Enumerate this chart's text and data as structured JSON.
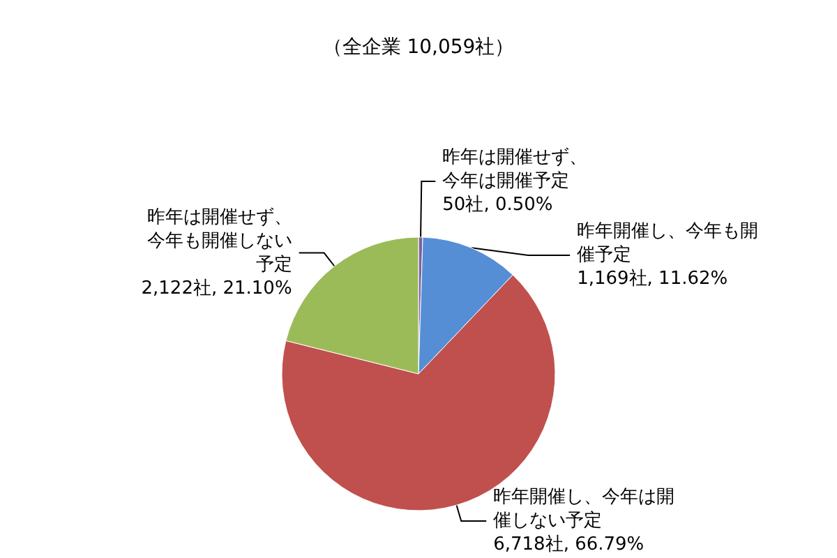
{
  "chart_data": {
    "type": "pie",
    "title": "（全企業 10,059社）",
    "categories": [
      "昨年は開催せず、今年は開催予定",
      "昨年開催し、今年も開催予定",
      "昨年開催し、今年は開催しない予定",
      "昨年は開催せず、今年も開催しない予定"
    ],
    "values": [
      50,
      1169,
      6718,
      2122
    ],
    "colors": [
      "#7f60a0",
      "#558ed5",
      "#c0504d",
      "#9bbb59"
    ],
    "value_labels": [
      "50社, 0.50%",
      "1,169社, 11.62%",
      "6,718社, 66.79%",
      "2,122社, 21.10%"
    ],
    "legend": false
  }
}
